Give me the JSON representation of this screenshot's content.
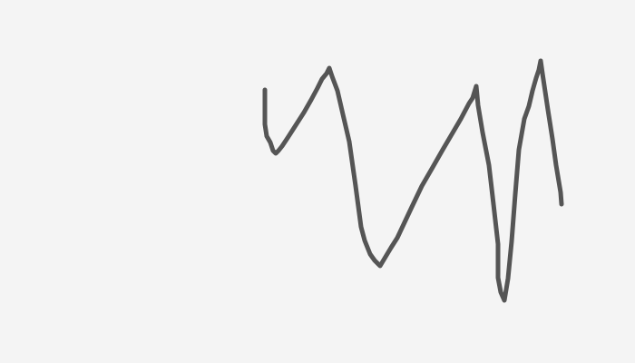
{
  "canvas": {
    "background_color": "#f4f4f4",
    "stroke_color": "#555555",
    "tool": "freehand-stroke",
    "stroke_count": 1
  }
}
